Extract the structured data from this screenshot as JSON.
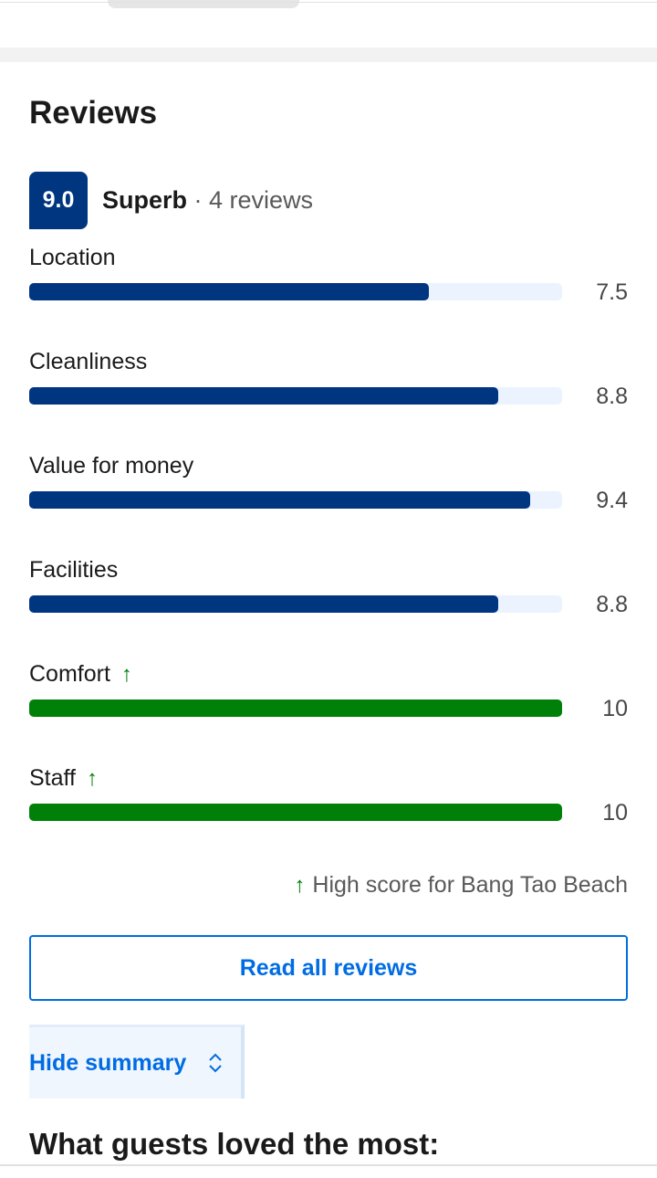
{
  "reviews": {
    "title": "Reviews",
    "overall": {
      "score": "9.0",
      "rating": "Superb",
      "count": "· 4 reviews"
    },
    "categories": [
      {
        "label": "Location",
        "score": 7.5,
        "high": false
      },
      {
        "label": "Cleanliness",
        "score": 8.8,
        "high": false
      },
      {
        "label": "Value for money",
        "score": 9.4,
        "high": false
      },
      {
        "label": "Facilities",
        "score": 8.8,
        "high": false
      },
      {
        "label": "Comfort",
        "score": 10,
        "high": true
      },
      {
        "label": "Staff",
        "score": 10,
        "high": true
      }
    ],
    "colors": {
      "normal": "#003580",
      "high": "#008009",
      "track": "#ebf3ff"
    },
    "note": "High score for Bang Tao Beach",
    "read_all_button": "Read all reviews",
    "toggle_button": "Hide summary",
    "loved_heading": "What guests loved the most:"
  }
}
